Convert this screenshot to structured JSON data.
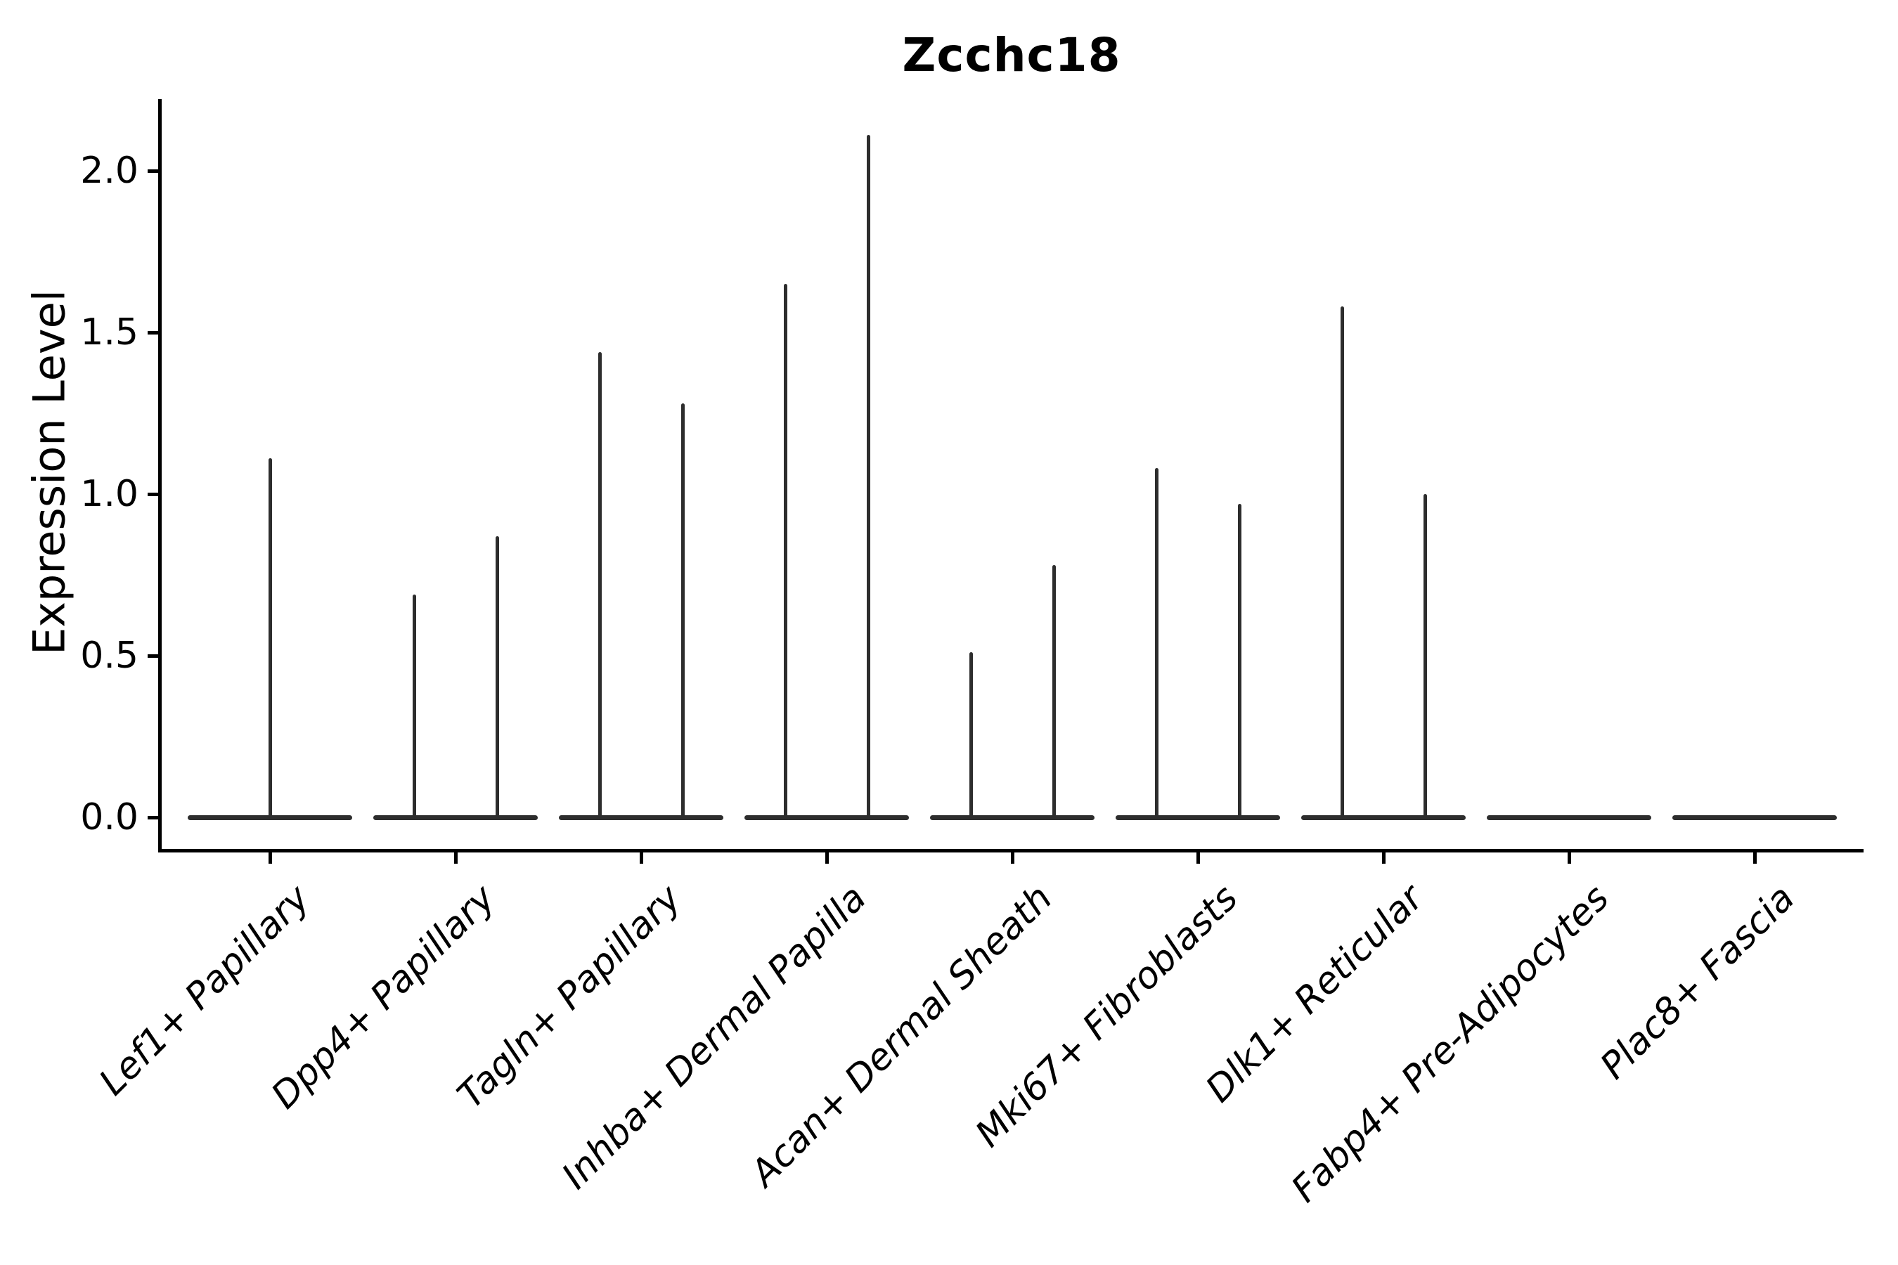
{
  "title": "Zcchc18",
  "chart_data": {
    "type": "violin",
    "title": "Zcchc18",
    "ylabel": "Expression Level",
    "xlabel": "",
    "ytick_labels": [
      "0.0",
      "0.5",
      "1.0",
      "1.5",
      "2.0"
    ],
    "ytick_values": [
      0.0,
      0.5,
      1.0,
      1.5,
      2.0
    ],
    "ylim": [
      -0.1,
      2.22
    ],
    "grid": false,
    "legend": null,
    "categories": [
      "Lef1+ Papillary",
      "Dpp4+ Papillary",
      "Tagln+ Papillary",
      "Inhba+ Dermal Papilla",
      "Acan+ Dermal Sheath",
      "Mki67+ Fibroblasts",
      "Dlk1+ Reticular",
      "Fabp4+ Pre-Adipocytes",
      "Plac8+ Fascia"
    ],
    "violins": [
      {
        "category": "Lef1+ Papillary",
        "spike_values": [
          1.11
        ]
      },
      {
        "category": "Dpp4+ Papillary",
        "spike_values": [
          0.69,
          0.87
        ]
      },
      {
        "category": "Tagln+ Papillary",
        "spike_values": [
          1.44,
          1.28
        ]
      },
      {
        "category": "Inhba+ Dermal Papilla",
        "spike_values": [
          1.65,
          2.11
        ]
      },
      {
        "category": "Acan+ Dermal Sheath",
        "spike_values": [
          0.51,
          0.78
        ]
      },
      {
        "category": "Mki67+ Fibroblasts",
        "spike_values": [
          1.08,
          0.97
        ]
      },
      {
        "category": "Dlk1+ Reticular",
        "spike_values": [
          1.58,
          1.0
        ]
      },
      {
        "category": "Fabp4+ Pre-Adipocytes",
        "spike_values": []
      },
      {
        "category": "Plac8+ Fascia",
        "spike_values": []
      }
    ],
    "colors": {
      "violin_line": "#2d2d2d",
      "axis": "#000000",
      "text": "#000000",
      "background": "#ffffff"
    },
    "description": "Expression distributions concentrated at 0: each violin is a flat line at 0 with a thin vertical density spike reaching the maximum expression value; last two cell types have all-zero expression."
  }
}
